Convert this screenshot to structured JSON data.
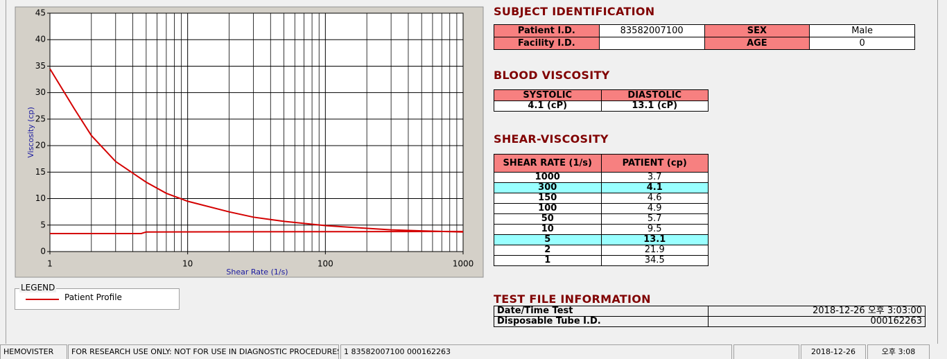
{
  "chart_data": {
    "type": "line",
    "x_label": "Shear Rate (1/s)",
    "y_label": "Viscosity (cp)",
    "xscale": "log",
    "xlim": [
      1,
      1000
    ],
    "xticks": [
      1,
      10,
      100,
      1000
    ],
    "x_minor_ticks": [
      2,
      3,
      4,
      5,
      6,
      7,
      8,
      9,
      20,
      30,
      40,
      50,
      60,
      70,
      80,
      90,
      200,
      300,
      400,
      500,
      600,
      700,
      800,
      900
    ],
    "ylim": [
      0,
      45
    ],
    "yticks": [
      0,
      5,
      10,
      15,
      20,
      25,
      30,
      35,
      40,
      45
    ],
    "grid": true,
    "legend_title": "LEGEND",
    "series": [
      {
        "name": "Patient Profile",
        "color": "#d40000",
        "x": [
          1,
          1.5,
          2,
          3,
          5,
          7,
          10,
          20,
          30,
          50,
          100,
          150,
          300,
          500,
          1000
        ],
        "values": [
          34.5,
          27,
          21.9,
          17,
          13.1,
          11,
          9.5,
          7.5,
          6.5,
          5.7,
          4.9,
          4.6,
          4.1,
          3.9,
          3.7
        ]
      },
      {
        "color": "#d40000",
        "x": [
          1,
          4.6,
          5,
          1000
        ],
        "values": [
          3.4,
          3.4,
          3.7,
          3.8
        ]
      }
    ]
  },
  "subject": {
    "title": "SUBJECT IDENTIFICATION",
    "patient_id_label": "Patient I.D.",
    "patient_id": "83582007100",
    "sex_label": "SEX",
    "sex": "Male",
    "facility_label": "Facility I.D.",
    "age_label": "AGE",
    "age": "0"
  },
  "blood": {
    "title": "BLOOD VISCOSITY",
    "headers": [
      "SYSTOLIC",
      "DIASTOLIC"
    ],
    "values": [
      "4.1 (cP)",
      "13.1 (cP)"
    ]
  },
  "shear": {
    "title": "SHEAR-VISCOSITY",
    "headers": [
      "SHEAR RATE (1/s)",
      "PATIENT (cp)"
    ],
    "rows": [
      {
        "rate": "1000",
        "value": "3.7"
      },
      {
        "rate": "300",
        "value": "4.1",
        "highlight": true
      },
      {
        "rate": "150",
        "value": "4.6"
      },
      {
        "rate": "100",
        "value": "4.9"
      },
      {
        "rate": "50",
        "value": "5.7"
      },
      {
        "rate": "10",
        "value": "9.5"
      },
      {
        "rate": "5",
        "value": "13.1",
        "highlight": true
      },
      {
        "rate": "2",
        "value": "21.9"
      },
      {
        "rate": "1",
        "value": "34.5"
      }
    ]
  },
  "test_file": {
    "title": "TEST FILE INFORMATION",
    "rows": [
      {
        "label": "Date/Time Test",
        "value": "2018-12-26  오후 3:03:00"
      },
      {
        "label": "Disposable Tube I.D.",
        "value": "000162263"
      }
    ]
  },
  "status_bar": [
    "HEMOVISTER",
    "FOR RESEARCH USE ONLY: NOT FOR USE IN DIAGNOSTIC PROCEDURES",
    "1  83582007100  000162263",
    "2018-12-26",
    "오후 3:08"
  ]
}
